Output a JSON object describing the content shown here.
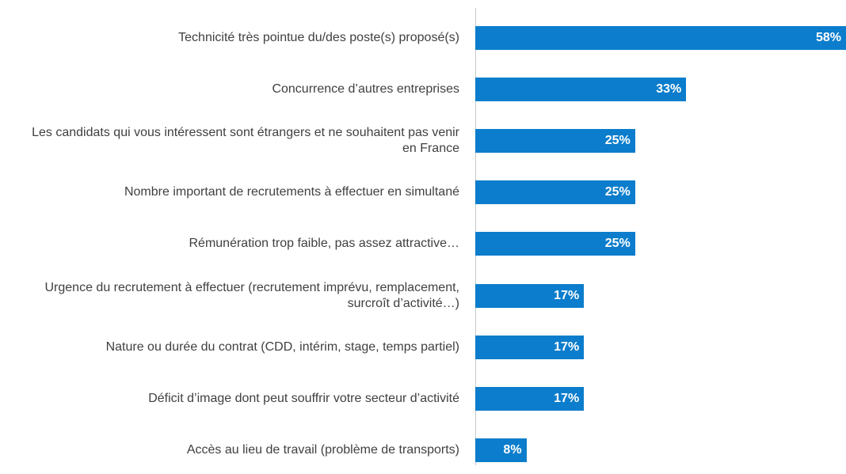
{
  "chart_data": {
    "type": "bar",
    "orientation": "horizontal",
    "categories": [
      "Technicité très pointue du/des poste(s) proposé(s)",
      "Concurrence d’autres entreprises",
      "Les candidats qui vous intéressent sont étrangers et ne souhaitent pas venir en France",
      "Nombre important de recrutements à effectuer en simultané",
      "Rémunération trop faible, pas assez attractive…",
      "Urgence du recrutement à effectuer (recrutement imprévu, remplacement, surcroît d’activité…)",
      "Nature ou durée du contrat (CDD, intérim, stage, temps partiel)",
      "Déficit d’image dont peut souffrir votre secteur d’activité",
      "Accès au lieu de travail (problème de transports)"
    ],
    "values": [
      58,
      33,
      25,
      25,
      25,
      17,
      17,
      17,
      8
    ],
    "value_labels": [
      "58%",
      "33%",
      "25%",
      "25%",
      "25%",
      "17%",
      "17%",
      "17%",
      "8%"
    ],
    "color": "#0b7dcc",
    "xlim": [
      0,
      58
    ]
  }
}
